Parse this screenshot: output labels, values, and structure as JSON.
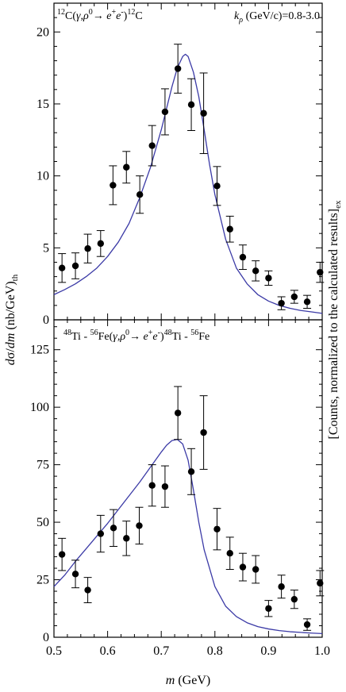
{
  "chart_data": [
    {
      "type": "scatter",
      "panel_label": "¹²C(γ,ρ⁰→e⁺e⁻)¹²C",
      "corner_label": "kρ (GeV/c)=0.8-3.0",
      "xlim": [
        0.5,
        1.0
      ],
      "ylim": [
        0,
        22
      ],
      "yticks": [
        0,
        5,
        10,
        15,
        20
      ],
      "curve_color": "#3b3aa6",
      "points": [
        {
          "x": 0.515,
          "y": 3.6,
          "err": 1.0
        },
        {
          "x": 0.54,
          "y": 3.75,
          "err": 0.9
        },
        {
          "x": 0.563,
          "y": 4.95,
          "err": 1.0
        },
        {
          "x": 0.587,
          "y": 5.3,
          "err": 0.9
        },
        {
          "x": 0.61,
          "y": 9.35,
          "err": 1.35
        },
        {
          "x": 0.635,
          "y": 10.6,
          "err": 1.1
        },
        {
          "x": 0.66,
          "y": 8.7,
          "err": 1.3
        },
        {
          "x": 0.683,
          "y": 12.1,
          "err": 1.4
        },
        {
          "x": 0.707,
          "y": 14.45,
          "err": 1.6
        },
        {
          "x": 0.731,
          "y": 17.45,
          "err": 1.7
        },
        {
          "x": 0.756,
          "y": 14.95,
          "err": 1.8
        },
        {
          "x": 0.779,
          "y": 14.35,
          "err": 2.8
        },
        {
          "x": 0.804,
          "y": 9.3,
          "err": 1.35
        },
        {
          "x": 0.828,
          "y": 6.3,
          "err": 0.9
        },
        {
          "x": 0.852,
          "y": 4.35,
          "err": 0.85
        },
        {
          "x": 0.876,
          "y": 3.4,
          "err": 0.7
        },
        {
          "x": 0.9,
          "y": 2.9,
          "err": 0.5
        },
        {
          "x": 0.924,
          "y": 1.15,
          "err": 0.45
        },
        {
          "x": 0.948,
          "y": 1.6,
          "err": 0.45
        },
        {
          "x": 0.972,
          "y": 1.25,
          "err": 0.45
        },
        {
          "x": 0.996,
          "y": 3.3,
          "err": 0.7
        }
      ],
      "curve": {
        "x": [
          0.5,
          0.52,
          0.54,
          0.56,
          0.58,
          0.6,
          0.62,
          0.64,
          0.66,
          0.68,
          0.7,
          0.72,
          0.73,
          0.74,
          0.745,
          0.75,
          0.76,
          0.77,
          0.78,
          0.79,
          0.8,
          0.82,
          0.84,
          0.86,
          0.88,
          0.9,
          0.92,
          0.94,
          0.96,
          0.98,
          1.0
        ],
        "y": [
          1.75,
          2.1,
          2.5,
          3.0,
          3.6,
          4.4,
          5.4,
          6.7,
          8.5,
          10.6,
          13.2,
          16.2,
          17.5,
          18.3,
          18.45,
          18.3,
          17.2,
          15.5,
          13.2,
          10.8,
          8.7,
          5.6,
          3.6,
          2.5,
          1.75,
          1.3,
          1.0,
          0.8,
          0.65,
          0.55,
          0.45
        ]
      }
    },
    {
      "type": "scatter",
      "panel_label": "⁴⁸Ti - ⁵⁶Fe(γ,ρ⁰→e⁺e⁻)⁴⁸Ti - ⁵⁶Fe",
      "xlim": [
        0.5,
        1.0
      ],
      "ylim": [
        0,
        138
      ],
      "yticks": [
        0,
        25,
        50,
        75,
        100,
        125
      ],
      "xticks": [
        0.5,
        0.6,
        0.7,
        0.8,
        0.9,
        1.0
      ],
      "curve_color": "#3b3aa6",
      "points": [
        {
          "x": 0.515,
          "y": 36.0,
          "err": 7.0
        },
        {
          "x": 0.54,
          "y": 27.5,
          "err": 6.0
        },
        {
          "x": 0.563,
          "y": 20.5,
          "err": 5.5
        },
        {
          "x": 0.587,
          "y": 45.0,
          "err": 8.0
        },
        {
          "x": 0.611,
          "y": 47.5,
          "err": 8.0
        },
        {
          "x": 0.635,
          "y": 43.0,
          "err": 7.5
        },
        {
          "x": 0.659,
          "y": 48.5,
          "err": 8.0
        },
        {
          "x": 0.683,
          "y": 66.0,
          "err": 9.0
        },
        {
          "x": 0.707,
          "y": 65.5,
          "err": 9.0
        },
        {
          "x": 0.731,
          "y": 97.5,
          "err": 11.5
        },
        {
          "x": 0.756,
          "y": 72.0,
          "err": 10.0
        },
        {
          "x": 0.779,
          "y": 89.0,
          "err": 16.0
        },
        {
          "x": 0.804,
          "y": 47.0,
          "err": 9.0
        },
        {
          "x": 0.828,
          "y": 36.5,
          "err": 7.0
        },
        {
          "x": 0.852,
          "y": 30.5,
          "err": 6.0
        },
        {
          "x": 0.876,
          "y": 29.5,
          "err": 6.0
        },
        {
          "x": 0.9,
          "y": 12.5,
          "err": 3.5
        },
        {
          "x": 0.924,
          "y": 22.0,
          "err": 5.0
        },
        {
          "x": 0.948,
          "y": 16.5,
          "err": 4.0
        },
        {
          "x": 0.972,
          "y": 5.5,
          "err": 2.5
        },
        {
          "x": 0.996,
          "y": 23.5,
          "err": 5.5
        }
      ],
      "curve": {
        "x": [
          0.5,
          0.52,
          0.54,
          0.56,
          0.58,
          0.6,
          0.62,
          0.64,
          0.66,
          0.68,
          0.7,
          0.71,
          0.72,
          0.73,
          0.74,
          0.75,
          0.76,
          0.77,
          0.78,
          0.8,
          0.82,
          0.84,
          0.86,
          0.88,
          0.9,
          0.92,
          0.94,
          0.96,
          0.98,
          1.0
        ],
        "y": [
          22.0,
          27.0,
          33.0,
          38.5,
          44.0,
          49.5,
          55.5,
          61.5,
          67.5,
          74.0,
          80.5,
          83.5,
          85.5,
          86.0,
          84.0,
          77.0,
          64.0,
          50.0,
          38.0,
          22.0,
          13.5,
          9.0,
          6.3,
          4.6,
          3.6,
          2.9,
          2.4,
          2.1,
          1.8,
          1.6
        ]
      }
    }
  ],
  "xlabel": "m (GeV)",
  "ylabel_left": "dσ/dm (nb/GeV)th",
  "ylabel_right": "[Counts, normalized to the calculated results]ex"
}
